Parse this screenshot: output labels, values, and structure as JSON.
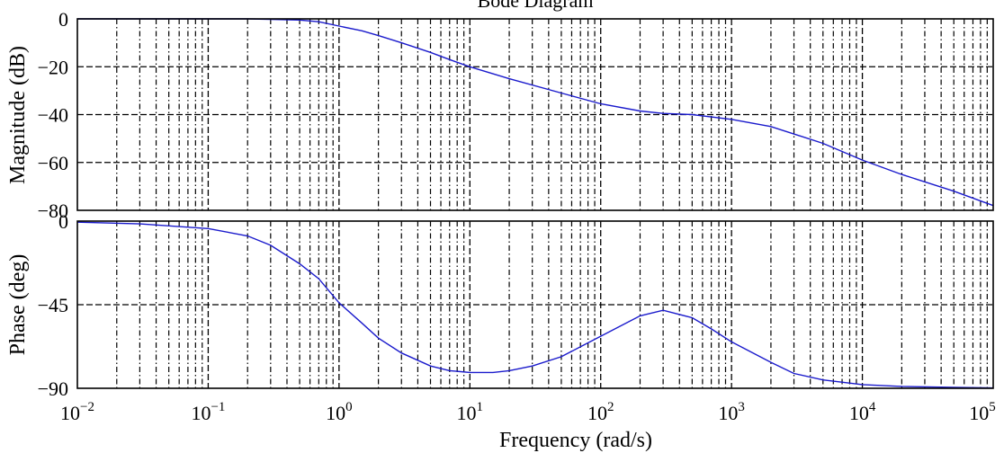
{
  "chart_data": [
    {
      "type": "line",
      "title": "Bode Diagram",
      "panel": "magnitude",
      "xlabel": "Frequency (rad/s)",
      "ylabel": "Magnitude (dB)",
      "xscale": "log",
      "xlim": [
        0.01,
        100000
      ],
      "ylim": [
        -80,
        0
      ],
      "yticks": [
        0,
        -20,
        -40,
        -60,
        -80
      ],
      "grid": true,
      "series": [
        {
          "color": "#1a1acc",
          "x": [
            0.01,
            0.03,
            0.1,
            0.2,
            0.3,
            0.5,
            0.7,
            1,
            1.5,
            2,
            3,
            5,
            7,
            10,
            20,
            50,
            100,
            200,
            300,
            500,
            1000,
            2000,
            5000,
            10000,
            20000,
            50000,
            100000
          ],
          "y": [
            0,
            0,
            0,
            0,
            -0.2,
            -0.5,
            -1.2,
            -3,
            -5,
            -7,
            -10,
            -14,
            -17,
            -20,
            -25,
            -31,
            -35.5,
            -38.5,
            -39.5,
            -40,
            -42,
            -45,
            -52,
            -59,
            -65,
            -72,
            -78
          ]
        }
      ]
    },
    {
      "type": "line",
      "panel": "phase",
      "xlabel": "Frequency (rad/s)",
      "ylabel": "Phase (deg)",
      "xscale": "log",
      "xlim": [
        0.01,
        100000
      ],
      "ylim": [
        -90,
        0
      ],
      "xticks": [
        0.01,
        0.1,
        1,
        10,
        100,
        1000,
        10000,
        100000
      ],
      "xtick_labels": [
        {
          "base": "10",
          "exp": "−2"
        },
        {
          "base": "10",
          "exp": "−1"
        },
        {
          "base": "10",
          "exp": "0"
        },
        {
          "base": "10",
          "exp": "1"
        },
        {
          "base": "10",
          "exp": "2"
        },
        {
          "base": "10",
          "exp": "3"
        },
        {
          "base": "10",
          "exp": "4"
        },
        {
          "base": "10",
          "exp": "5"
        }
      ],
      "yticks": [
        0,
        -45,
        -90
      ],
      "grid": true,
      "series": [
        {
          "color": "#1a1acc",
          "x": [
            0.01,
            0.03,
            0.1,
            0.2,
            0.3,
            0.5,
            0.7,
            1,
            1.5,
            2,
            3,
            5,
            7,
            10,
            15,
            20,
            30,
            50,
            100,
            200,
            300,
            500,
            700,
            1000,
            2000,
            3000,
            5000,
            10000,
            20000,
            50000,
            100000
          ],
          "y": [
            -0.6,
            -1.5,
            -4,
            -8,
            -13,
            -23,
            -31,
            -44,
            -55,
            -63,
            -71,
            -78,
            -80.5,
            -81.5,
            -81.5,
            -80.5,
            -78,
            -73,
            -62,
            -51,
            -48,
            -52,
            -58,
            -65,
            -76,
            -82,
            -85.5,
            -88,
            -89,
            -89.5,
            -89.8
          ]
        }
      ]
    }
  ],
  "labels": {
    "title": "Bode Diagram",
    "xlabel": "Frequency (rad/s)",
    "ylabel_mag": "Magnitude (dB)",
    "ylabel_phase": "Phase (deg)",
    "mag_ticks": [
      "0",
      "−20",
      "−40",
      "−60",
      "−80"
    ],
    "phase_ticks": [
      "0",
      "−45",
      "−90"
    ]
  }
}
